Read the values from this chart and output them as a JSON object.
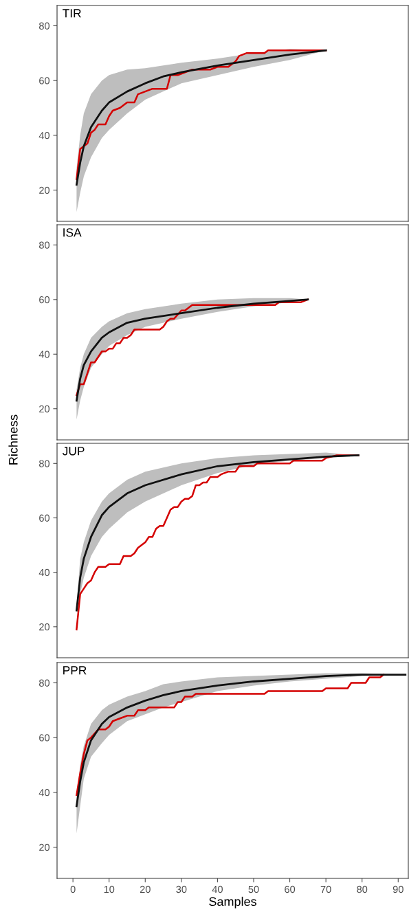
{
  "chart_data": [
    {
      "type": "line",
      "title": "TIR",
      "xlim": [
        -4.4,
        92.8
      ],
      "xticks": [
        0,
        10,
        20,
        30,
        40,
        50,
        60,
        70,
        80,
        90
      ],
      "ylim": [
        8.6,
        87.4
      ],
      "yticks": [
        20,
        40,
        60,
        80
      ],
      "tick_labels": "y",
      "grid": false,
      "legend": false,
      "series": [
        {
          "color": "#d40000",
          "x": [
            1,
            2,
            3,
            4,
            5,
            6,
            7,
            9,
            10,
            11,
            13,
            15,
            17,
            18,
            20,
            22,
            26,
            27,
            29,
            31,
            33,
            38,
            40,
            43,
            45,
            46,
            48,
            53,
            54,
            70
          ],
          "values": [
            24,
            35,
            36,
            37,
            41,
            42,
            44,
            44,
            47,
            49,
            50,
            52,
            52,
            55,
            56,
            57,
            57,
            62,
            62,
            63,
            64,
            64,
            65,
            65,
            67,
            69,
            70,
            70,
            71,
            71
          ]
        },
        {
          "color": "#111111",
          "x": [
            1,
            2,
            3,
            5,
            8,
            10,
            15,
            20,
            25,
            30,
            40,
            50,
            60,
            70
          ],
          "values": [
            22,
            30,
            36,
            43,
            49,
            52,
            56,
            59,
            61.5,
            63,
            65.5,
            67.5,
            69.5,
            71
          ],
          "lower": [
            12,
            19,
            25,
            32,
            39,
            42,
            48,
            53,
            56,
            59,
            62,
            65,
            67.5,
            71
          ],
          "upper": [
            28,
            40,
            48,
            55,
            60,
            62,
            64,
            64.5,
            65.5,
            66.5,
            68,
            70,
            71.5,
            71
          ]
        }
      ]
    },
    {
      "type": "line",
      "title": "ISA",
      "ylabel": "Richness",
      "xlim": [
        -4.4,
        92.8
      ],
      "xticks": [
        0,
        10,
        20,
        30,
        40,
        50,
        60,
        70,
        80,
        90
      ],
      "ylim": [
        8.6,
        87.4
      ],
      "yticks": [
        20,
        40,
        60,
        80
      ],
      "tick_labels": "y",
      "grid": false,
      "legend": false,
      "series": [
        {
          "color": "#d40000",
          "x": [
            1,
            2,
            3,
            4,
            5,
            6,
            7,
            8,
            9,
            10,
            11,
            12,
            13,
            14,
            15,
            16,
            17,
            24,
            25,
            26,
            27,
            28,
            30,
            31,
            33,
            43,
            50,
            56,
            57,
            63,
            65
          ],
          "values": [
            25,
            29,
            29,
            33,
            37,
            37,
            39,
            41,
            41,
            42,
            42,
            44,
            44,
            46,
            46,
            47,
            49,
            49,
            50,
            52,
            53,
            53,
            56,
            56,
            58,
            58,
            58,
            58,
            59,
            59,
            60
          ]
        },
        {
          "color": "#111111",
          "x": [
            1,
            2,
            3,
            5,
            8,
            10,
            15,
            20,
            30,
            40,
            50,
            60,
            65
          ],
          "values": [
            23,
            31,
            36,
            41,
            46,
            48,
            51.5,
            53,
            55,
            57,
            58.5,
            59.5,
            60
          ],
          "lower": [
            16,
            23,
            28,
            35,
            40,
            43,
            47,
            50,
            53,
            55.5,
            57.5,
            59,
            60
          ],
          "upper": [
            27,
            35,
            40,
            46,
            50,
            52,
            55,
            56.5,
            58.5,
            60,
            60.5,
            60.5,
            60
          ]
        }
      ]
    },
    {
      "type": "line",
      "title": "JUP",
      "xlim": [
        -4.4,
        92.8
      ],
      "xticks": [
        0,
        10,
        20,
        30,
        40,
        50,
        60,
        70,
        80,
        90
      ],
      "ylim": [
        8.6,
        87.4
      ],
      "yticks": [
        20,
        40,
        60,
        80
      ],
      "tick_labels": "y",
      "grid": false,
      "legend": false,
      "series": [
        {
          "color": "#d40000",
          "x": [
            1,
            2,
            3,
            4,
            5,
            6,
            7,
            9,
            10,
            13,
            14,
            16,
            17,
            18,
            19,
            20,
            21,
            22,
            23,
            24,
            25,
            26,
            27,
            28,
            29,
            30,
            31,
            32,
            33,
            34,
            35,
            36,
            37,
            38,
            40,
            41,
            43,
            45,
            46,
            50,
            51,
            60,
            61,
            69,
            70,
            73,
            79
          ],
          "values": [
            19,
            32,
            34,
            36,
            37,
            40,
            42,
            42,
            43,
            43,
            46,
            46,
            47,
            49,
            50,
            51,
            53,
            53,
            56,
            57,
            57,
            60,
            63,
            64,
            64,
            66,
            67,
            67,
            68,
            72,
            72,
            73,
            73,
            75,
            75,
            76,
            77,
            77,
            79,
            79,
            80,
            80,
            81,
            81,
            82,
            83,
            83
          ]
        },
        {
          "color": "#111111",
          "x": [
            1,
            2,
            3,
            5,
            8,
            10,
            15,
            20,
            30,
            40,
            50,
            60,
            70,
            79
          ],
          "values": [
            26,
            38,
            45,
            53,
            61,
            64,
            69,
            72,
            76,
            79,
            80.5,
            81.5,
            82.5,
            83
          ],
          "lower": [
            26,
            32,
            38,
            46,
            53,
            56,
            62,
            66,
            72,
            76.5,
            79.5,
            81,
            82,
            83
          ],
          "upper": [
            28,
            45,
            51,
            59,
            66,
            69,
            74,
            77,
            80,
            82,
            83,
            83.5,
            84,
            83
          ]
        }
      ]
    },
    {
      "type": "line",
      "title": "PPR",
      "xlabel": "Samples",
      "xlim": [
        -4.4,
        92.8
      ],
      "xticks": [
        0,
        10,
        20,
        30,
        40,
        50,
        60,
        70,
        80,
        90
      ],
      "ylim": [
        8.6,
        87.4
      ],
      "yticks": [
        20,
        40,
        60,
        80
      ],
      "grid": false,
      "legend": false,
      "series": [
        {
          "color": "#d40000",
          "x": [
            1,
            2,
            3,
            4,
            5,
            7,
            9,
            10,
            11,
            13,
            15,
            17,
            18,
            20,
            21,
            28,
            29,
            30,
            31,
            33,
            34,
            53,
            54,
            69,
            70,
            76,
            77,
            81,
            82,
            85,
            86
          ],
          "values": [
            39,
            47,
            54,
            59,
            60,
            63,
            63,
            64,
            66,
            67,
            68,
            68,
            70,
            70,
            71,
            71,
            73,
            73,
            75,
            75,
            76,
            76,
            77,
            77,
            78,
            78,
            80,
            80,
            82,
            82,
            83
          ]
        },
        {
          "color": "#111111",
          "x": [
            1,
            2,
            3,
            5,
            8,
            10,
            15,
            20,
            25,
            30,
            40,
            50,
            60,
            70,
            80,
            92
          ],
          "values": [
            35,
            44,
            51,
            59,
            65,
            67.5,
            71,
            73.5,
            75.5,
            77,
            79,
            80.5,
            81.5,
            82.5,
            83,
            83
          ],
          "lower": [
            25,
            35,
            45,
            53,
            58,
            61,
            66,
            68.5,
            71,
            73,
            77,
            79,
            80.5,
            81.5,
            82.5,
            83
          ],
          "upper": [
            38,
            50,
            57,
            65,
            70,
            72,
            75,
            77,
            79.5,
            80.5,
            82,
            82.5,
            83,
            83.5,
            83.5,
            83
          ]
        }
      ]
    }
  ]
}
